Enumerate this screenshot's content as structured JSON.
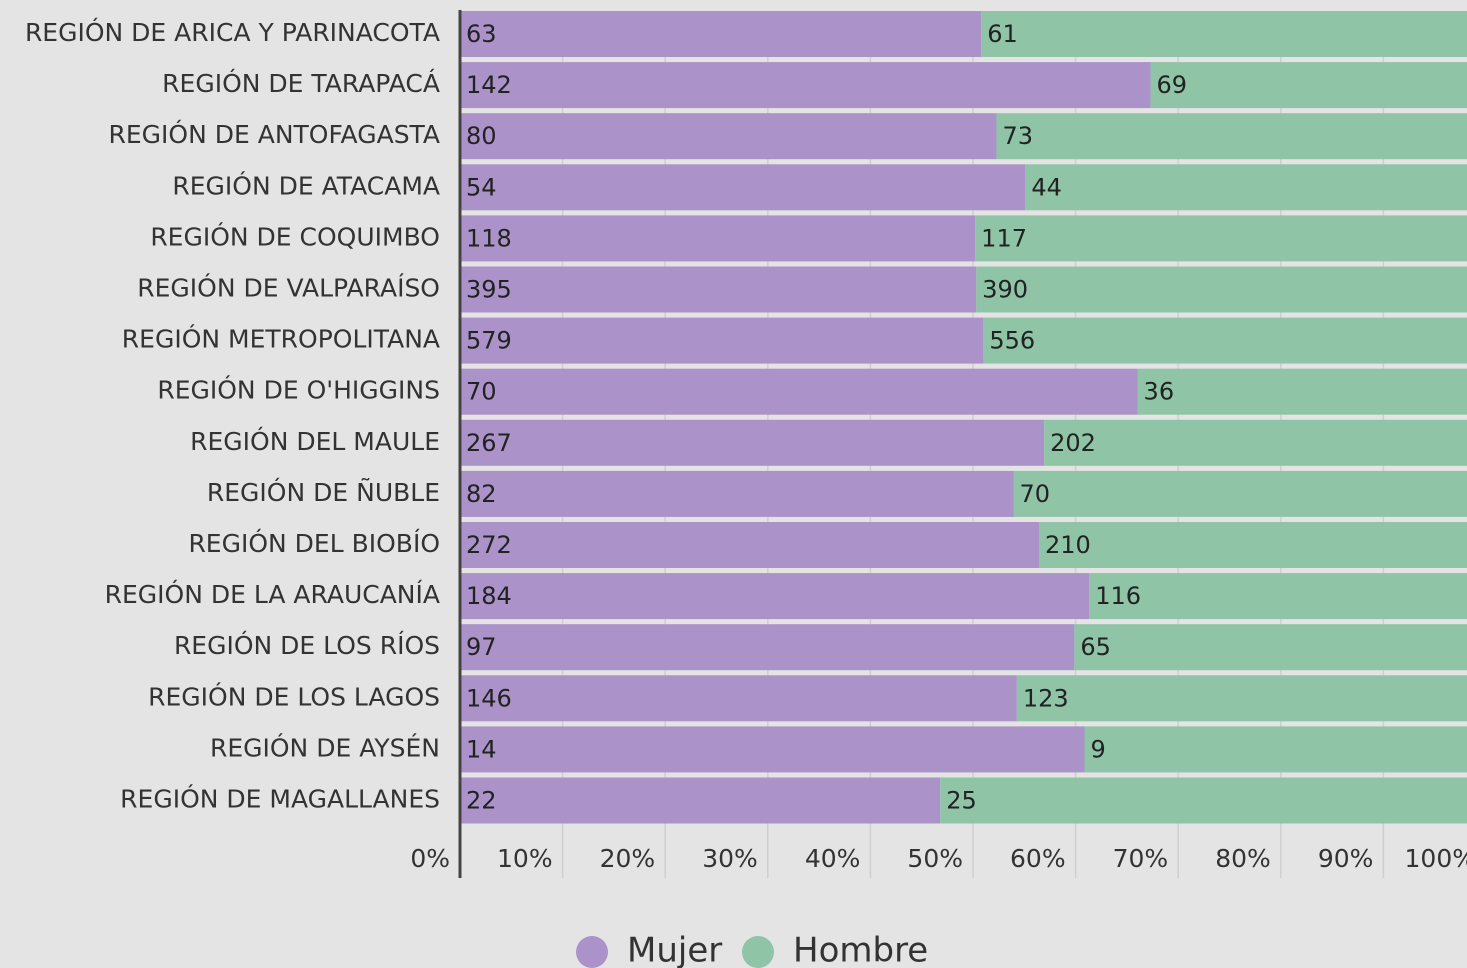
{
  "chart_data": {
    "type": "bar_stacked_percent_horizontal",
    "categories": [
      "REGIÓN DE ARICA Y PARINACOTA",
      "REGIÓN DE TARAPACÁ",
      "REGIÓN DE ANTOFAGASTA",
      "REGIÓN DE ATACAMA",
      "REGIÓN DE COQUIMBO",
      "REGIÓN DE VALPARAÍSO",
      "REGIÓN METROPOLITANA",
      "REGIÓN DE O'HIGGINS",
      "REGIÓN DEL MAULE",
      "REGIÓN DE ÑUBLE",
      "REGIÓN DEL BIOBÍO",
      "REGIÓN DE LA ARAUCANÍA",
      "REGIÓN DE LOS RÍOS",
      "REGIÓN DE LOS LAGOS",
      "REGIÓN DE AYSÉN",
      "REGIÓN DE MAGALLANES"
    ],
    "series": [
      {
        "name": "Mujer",
        "color": "#ab92c9",
        "values": [
          63,
          142,
          80,
          54,
          118,
          395,
          579,
          70,
          267,
          82,
          272,
          184,
          97,
          146,
          14,
          22
        ]
      },
      {
        "name": "Hombre",
        "color": "#8fc4a7",
        "values": [
          61,
          69,
          73,
          44,
          117,
          390,
          556,
          36,
          202,
          70,
          210,
          116,
          65,
          123,
          9,
          25
        ]
      }
    ],
    "xlim": [
      0,
      100
    ],
    "xticks": [
      {
        "value": 0,
        "label": "0%"
      },
      {
        "value": 10,
        "label": "10%"
      },
      {
        "value": 20,
        "label": "20%"
      },
      {
        "value": 30,
        "label": "30%"
      },
      {
        "value": 40,
        "label": "40%"
      },
      {
        "value": 50,
        "label": "50%"
      },
      {
        "value": 60,
        "label": "60%"
      },
      {
        "value": 70,
        "label": "70%"
      },
      {
        "value": 80,
        "label": "80%"
      },
      {
        "value": 90,
        "label": "90%"
      },
      {
        "value": 100,
        "label": "100%"
      }
    ],
    "grid": true,
    "legend": "bottom"
  }
}
